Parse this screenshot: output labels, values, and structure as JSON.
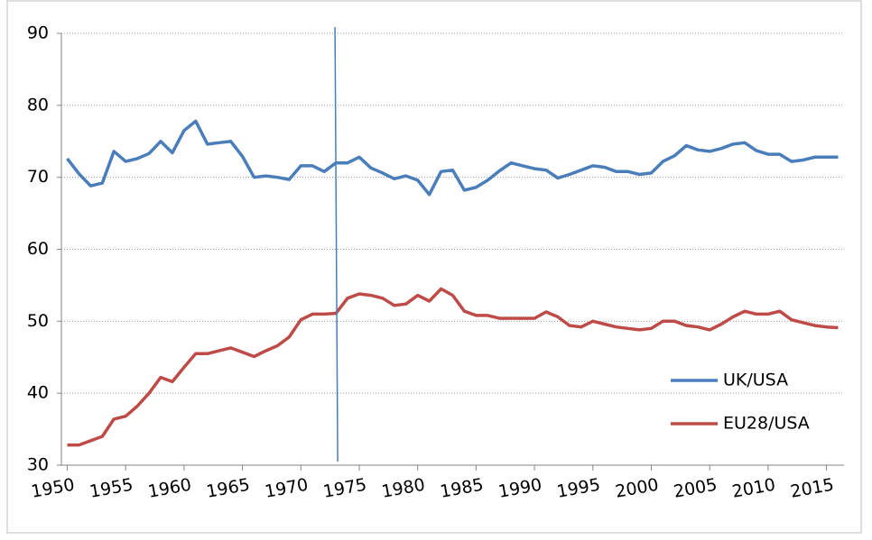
{
  "chart_data": {
    "type": "line",
    "x": [
      1950,
      1951,
      1952,
      1953,
      1954,
      1955,
      1956,
      1957,
      1958,
      1959,
      1960,
      1961,
      1962,
      1963,
      1964,
      1965,
      1966,
      1967,
      1968,
      1969,
      1970,
      1971,
      1972,
      1973,
      1974,
      1975,
      1976,
      1977,
      1978,
      1979,
      1980,
      1981,
      1982,
      1983,
      1984,
      1985,
      1986,
      1987,
      1988,
      1989,
      1990,
      1991,
      1992,
      1993,
      1994,
      1995,
      1996,
      1997,
      1998,
      1999,
      2000,
      2001,
      2002,
      2003,
      2004,
      2005,
      2006,
      2007,
      2008,
      2009,
      2010,
      2011,
      2012,
      2013,
      2014,
      2015,
      2016
    ],
    "series": [
      {
        "name": "UK/USA",
        "color": "#4a7ebb",
        "values": [
          72.6,
          70.5,
          68.8,
          69.2,
          73.6,
          72.2,
          72.6,
          73.3,
          75.0,
          73.4,
          76.5,
          77.8,
          74.6,
          74.8,
          75.0,
          72.9,
          70.0,
          70.2,
          70.0,
          69.7,
          71.6,
          71.6,
          70.8,
          72.0,
          72.0,
          72.8,
          71.3,
          70.6,
          69.8,
          70.2,
          69.6,
          67.6,
          70.8,
          71.0,
          68.2,
          68.6,
          69.6,
          70.9,
          72.0,
          71.6,
          71.2,
          71.0,
          69.9,
          70.4,
          71.0,
          71.6,
          71.4,
          70.8,
          70.8,
          70.4,
          70.6,
          72.2,
          73.0,
          74.4,
          73.8,
          73.6,
          74.0,
          74.6,
          74.8,
          73.7,
          73.2,
          73.2,
          72.2,
          72.4,
          72.8,
          72.8,
          72.8
        ]
      },
      {
        "name": "EU28/USA",
        "color": "#be4b48",
        "values": [
          32.8,
          32.8,
          33.4,
          34.0,
          36.4,
          36.8,
          38.2,
          40.0,
          42.2,
          41.6,
          43.6,
          45.5,
          45.5,
          45.9,
          46.3,
          45.7,
          45.1,
          45.9,
          46.6,
          47.8,
          50.2,
          51.0,
          51.0,
          51.1,
          53.2,
          53.8,
          53.6,
          53.2,
          52.2,
          52.4,
          53.6,
          52.8,
          54.5,
          53.6,
          51.4,
          50.8,
          50.8,
          50.4,
          50.4,
          50.4,
          50.4,
          51.3,
          50.6,
          49.4,
          49.2,
          50.0,
          49.6,
          49.2,
          49.0,
          48.8,
          49.0,
          50.0,
          50.0,
          49.4,
          49.2,
          48.8,
          49.6,
          50.6,
          51.4,
          51.0,
          51.0,
          51.4,
          50.2,
          49.8,
          49.4,
          49.2,
          49.1
        ]
      }
    ],
    "xlim": [
      1949.5,
      2016.5
    ],
    "xticks": [
      1950,
      1955,
      1960,
      1965,
      1970,
      1975,
      1980,
      1985,
      1990,
      1995,
      2000,
      2005,
      2010,
      2015
    ],
    "ylim": [
      30,
      90
    ],
    "yticks": [
      30,
      40,
      50,
      60,
      70,
      80,
      90
    ],
    "vline": 1973,
    "vline_color": "#4a7ebb",
    "grid": true,
    "legend": "right"
  }
}
